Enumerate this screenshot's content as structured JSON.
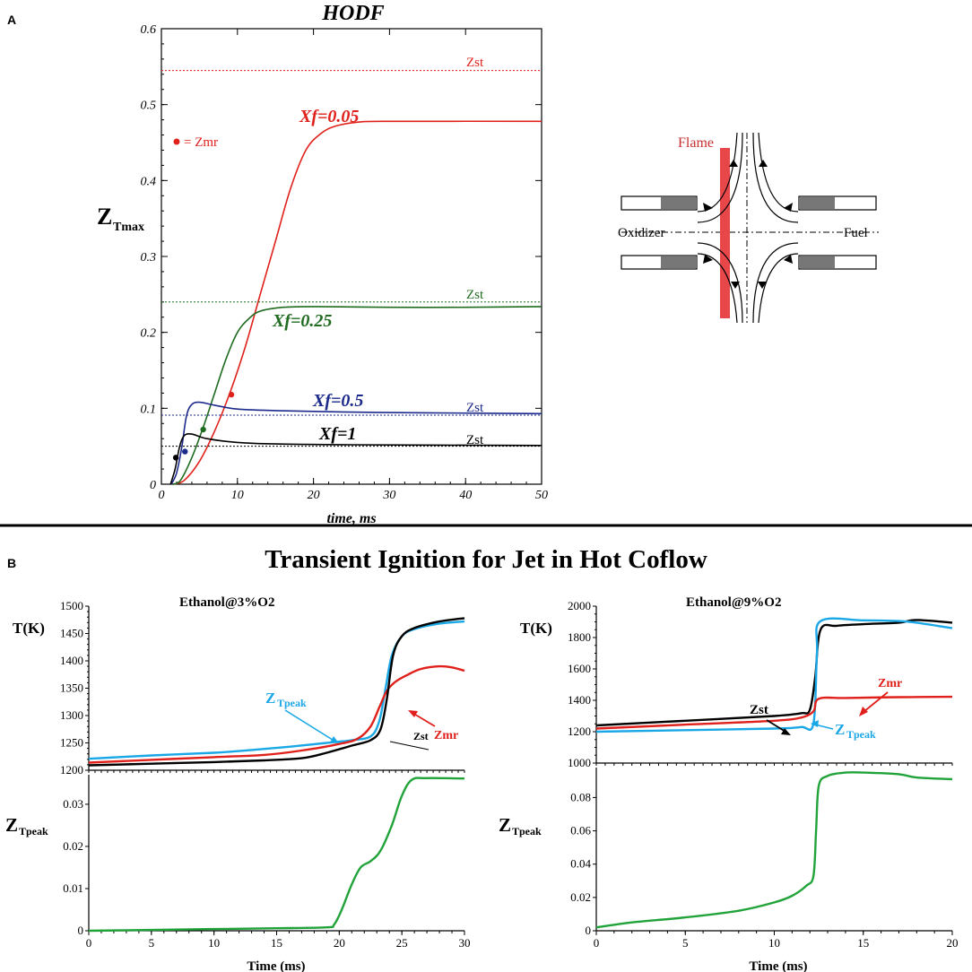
{
  "panel_a": {
    "letter": "A",
    "title": "HODF",
    "ylabel_main": "Z",
    "ylabel_sub": "Tmax",
    "xlabel": "time, ms",
    "legend_zmr": "= Zmr",
    "diagram": {
      "flame": "Flame",
      "oxidizer": "Oxidizer",
      "fuel": "Fuel"
    }
  },
  "panel_b": {
    "letter": "B",
    "title": "Transient Ignition for Jet in Hot Coflow"
  },
  "colors": {
    "red": "#e0201b",
    "green": "#1f6b1f",
    "blue": "#1c2a8c",
    "black": "#000000",
    "cyan": "#1aa7e6",
    "bgreen": "#21a33a"
  },
  "chart_data": [
    {
      "id": "hodf",
      "type": "line",
      "title": "HODF",
      "xlabel": "time, ms",
      "ylabel": "ZTmax",
      "xlim": [
        0,
        50
      ],
      "ylim": [
        0,
        0.6
      ],
      "xticks": [
        0,
        10,
        20,
        30,
        40,
        50
      ],
      "yticks": [
        0,
        0.1,
        0.2,
        0.3,
        0.4,
        0.5,
        0.6
      ],
      "yticklabels": [
        "0",
        "0.1",
        "0.2",
        "0.3",
        "0.4",
        "0.5",
        "0.6"
      ],
      "series": [
        {
          "name": "Xf=0.05",
          "color": "#e0201b",
          "points": [
            [
              1.5,
              0
            ],
            [
              3,
              0.005
            ],
            [
              5,
              0.03
            ],
            [
              7,
              0.07
            ],
            [
              9,
              0.12
            ],
            [
              11,
              0.18
            ],
            [
              13,
              0.25
            ],
            [
              15,
              0.32
            ],
            [
              17,
              0.39
            ],
            [
              19,
              0.44
            ],
            [
              21,
              0.462
            ],
            [
              23,
              0.472
            ],
            [
              26,
              0.477
            ],
            [
              30,
              0.478
            ],
            [
              50,
              0.478
            ]
          ],
          "zst": 0.545,
          "zmr": [
            9.2,
            0.118
          ]
        },
        {
          "name": "Xf=0.25",
          "color": "#1f6b1f",
          "points": [
            [
              1.5,
              0
            ],
            [
              2.5,
              0.005
            ],
            [
              4,
              0.035
            ],
            [
              5.5,
              0.075
            ],
            [
              7,
              0.12
            ],
            [
              8.5,
              0.165
            ],
            [
              10,
              0.2
            ],
            [
              11.5,
              0.218
            ],
            [
              13,
              0.228
            ],
            [
              16,
              0.233
            ],
            [
              20,
              0.234
            ],
            [
              30,
              0.233
            ],
            [
              40,
              0.233
            ],
            [
              50,
              0.234
            ]
          ],
          "zst": 0.24,
          "zmr": [
            5.5,
            0.072
          ]
        },
        {
          "name": "Xf=0.5",
          "color": "#1c2a8c",
          "points": [
            [
              1.3,
              0
            ],
            [
              2,
              0.015
            ],
            [
              2.7,
              0.05
            ],
            [
              3.3,
              0.09
            ],
            [
              4,
              0.105
            ],
            [
              5,
              0.108
            ],
            [
              7,
              0.104
            ],
            [
              10,
              0.099
            ],
            [
              15,
              0.097
            ],
            [
              25,
              0.095
            ],
            [
              35,
              0.094
            ],
            [
              50,
              0.093
            ]
          ],
          "zst": 0.091,
          "zmr": [
            3.1,
            0.043
          ]
        },
        {
          "name": "Xf=1",
          "color": "#000000",
          "points": [
            [
              1.2,
              0
            ],
            [
              1.8,
              0.02
            ],
            [
              2.4,
              0.05
            ],
            [
              3,
              0.064
            ],
            [
              4,
              0.066
            ],
            [
              6,
              0.06
            ],
            [
              10,
              0.055
            ],
            [
              15,
              0.053
            ],
            [
              25,
              0.052
            ],
            [
              50,
              0.051
            ]
          ],
          "zst": 0.05,
          "zmr": [
            1.9,
            0.035
          ]
        }
      ],
      "annotations": [
        "Zst",
        "Zst",
        "Zst",
        "Zst",
        "= Zmr"
      ]
    },
    {
      "id": "eth3_T",
      "type": "line",
      "title": "Ethanol@3%O2",
      "ylabel": "T(K)",
      "xlim": [
        0,
        30
      ],
      "ylim": [
        1200,
        1500
      ],
      "yticks": [
        1200,
        1250,
        1300,
        1350,
        1400,
        1450,
        1500
      ],
      "series": [
        {
          "name": "ZTpeak",
          "color": "#1aa7e6",
          "points": [
            [
              0,
              1221
            ],
            [
              5,
              1227
            ],
            [
              10,
              1232
            ],
            [
              13,
              1237
            ],
            [
              16,
              1243
            ],
            [
              19,
              1250
            ],
            [
              21,
              1255
            ],
            [
              22.5,
              1262
            ],
            [
              23.2,
              1290
            ],
            [
              23.7,
              1350
            ],
            [
              24.2,
              1410
            ],
            [
              25,
              1445
            ],
            [
              26,
              1458
            ],
            [
              28,
              1468
            ],
            [
              30,
              1472
            ]
          ]
        },
        {
          "name": "Zmr",
          "color": "#e0201b",
          "points": [
            [
              0,
              1214
            ],
            [
              5,
              1219
            ],
            [
              10,
              1224
            ],
            [
              14,
              1228
            ],
            [
              17,
              1236
            ],
            [
              20,
              1248
            ],
            [
              21.5,
              1258
            ],
            [
              22.5,
              1280
            ],
            [
              23.2,
              1315
            ],
            [
              23.8,
              1345
            ],
            [
              24.5,
              1362
            ],
            [
              25.5,
              1375
            ],
            [
              26.5,
              1385
            ],
            [
              28,
              1390
            ],
            [
              29,
              1388
            ],
            [
              30,
              1382
            ]
          ]
        },
        {
          "name": "Zst",
          "color": "#000000",
          "points": [
            [
              0,
              1209
            ],
            [
              5,
              1212
            ],
            [
              10,
              1215
            ],
            [
              14,
              1218
            ],
            [
              17,
              1222
            ],
            [
              19,
              1232
            ],
            [
              21,
              1245
            ],
            [
              22.5,
              1255
            ],
            [
              23.3,
              1275
            ],
            [
              23.8,
              1330
            ],
            [
              24.3,
              1410
            ],
            [
              25,
              1445
            ],
            [
              26,
              1460
            ],
            [
              28,
              1472
            ],
            [
              30,
              1478
            ]
          ]
        }
      ],
      "labels": {
        "ztpeak_main": "Z",
        "ztpeak_sub": "Tpeak",
        "zmr": "Zmr",
        "zst": "Zst"
      }
    },
    {
      "id": "eth3_Z",
      "type": "line",
      "xlabel": "Time (ms)",
      "ylabel": "ZTpeak",
      "xlim": [
        0,
        30
      ],
      "ylim": [
        0,
        0.037
      ],
      "xticks": [
        0,
        5,
        10,
        15,
        20,
        25,
        30
      ],
      "yticks": [
        0,
        0.01,
        0.02,
        0.03
      ],
      "yticklabels": [
        "0",
        "0.01",
        "0.02",
        "0.03"
      ],
      "series": [
        {
          "name": "ZTpeak",
          "color": "#21a33a",
          "points": [
            [
              0,
              0
            ],
            [
              5,
              0.0002
            ],
            [
              10,
              0.0004
            ],
            [
              15,
              0.0006
            ],
            [
              19,
              0.0008
            ],
            [
              19.6,
              0.0015
            ],
            [
              20.2,
              0.005
            ],
            [
              21,
              0.011
            ],
            [
              21.7,
              0.015
            ],
            [
              22.5,
              0.0165
            ],
            [
              23.3,
              0.019
            ],
            [
              24.2,
              0.025
            ],
            [
              25,
              0.032
            ],
            [
              25.8,
              0.0358
            ],
            [
              27,
              0.0362
            ],
            [
              30,
              0.0361
            ]
          ]
        }
      ]
    },
    {
      "id": "eth9_T",
      "type": "line",
      "title": "Ethanol@9%O2",
      "ylabel": "T(K)",
      "xlim": [
        0,
        20
      ],
      "ylim": [
        1000,
        2000
      ],
      "yticks": [
        1000,
        1200,
        1400,
        1600,
        1800,
        2000
      ],
      "series": [
        {
          "name": "Zst",
          "color": "#000000",
          "points": [
            [
              0,
              1240
            ],
            [
              5,
              1270
            ],
            [
              10,
              1300
            ],
            [
              11.5,
              1318
            ],
            [
              12,
              1340
            ],
            [
              12.3,
              1550
            ],
            [
              12.6,
              1850
            ],
            [
              13.5,
              1875
            ],
            [
              15,
              1885
            ],
            [
              17,
              1895
            ],
            [
              18,
              1912
            ],
            [
              20,
              1895
            ]
          ]
        },
        {
          "name": "ZTpeak",
          "color": "#1aa7e6",
          "points": [
            [
              0,
              1200
            ],
            [
              5,
              1210
            ],
            [
              10,
              1220
            ],
            [
              11.5,
              1230
            ],
            [
              12.2,
              1252
            ],
            [
              12.4,
              1700
            ],
            [
              12.6,
              1905
            ],
            [
              15,
              1910
            ],
            [
              17,
              1905
            ],
            [
              18,
              1895
            ],
            [
              20,
              1860
            ]
          ]
        },
        {
          "name": "Zmr",
          "color": "#e0201b",
          "points": [
            [
              0,
              1220
            ],
            [
              5,
              1245
            ],
            [
              10,
              1270
            ],
            [
              11.5,
              1290
            ],
            [
              12.2,
              1330
            ],
            [
              12.5,
              1410
            ],
            [
              14,
              1415
            ],
            [
              17,
              1420
            ],
            [
              20,
              1422
            ]
          ]
        }
      ],
      "labels": {
        "zst": "Zst",
        "zmr": "Zmr",
        "ztpeak_main": "Z",
        "ztpeak_sub": "Tpeak"
      }
    },
    {
      "id": "eth9_Z",
      "type": "line",
      "xlabel": "Time (ms)",
      "ylabel": "ZTpeak",
      "xlim": [
        0,
        20
      ],
      "ylim": [
        0,
        0.098
      ],
      "xticks": [
        0,
        5,
        10,
        15,
        20
      ],
      "yticks": [
        0,
        0.02,
        0.04,
        0.06,
        0.08
      ],
      "yticklabels": [
        "0",
        "0.02",
        "0.04",
        "0.06",
        "0.08"
      ],
      "series": [
        {
          "name": "ZTpeak",
          "color": "#21a33a",
          "points": [
            [
              0,
              0.002
            ],
            [
              2,
              0.005
            ],
            [
              5,
              0.008
            ],
            [
              8,
              0.012
            ],
            [
              10,
              0.017
            ],
            [
              11,
              0.021
            ],
            [
              11.8,
              0.027
            ],
            [
              12.2,
              0.033
            ],
            [
              12.35,
              0.06
            ],
            [
              12.5,
              0.087
            ],
            [
              13,
              0.093
            ],
            [
              14,
              0.095
            ],
            [
              15,
              0.095
            ],
            [
              17,
              0.094
            ],
            [
              18,
              0.092
            ],
            [
              20,
              0.091
            ]
          ]
        }
      ]
    }
  ]
}
